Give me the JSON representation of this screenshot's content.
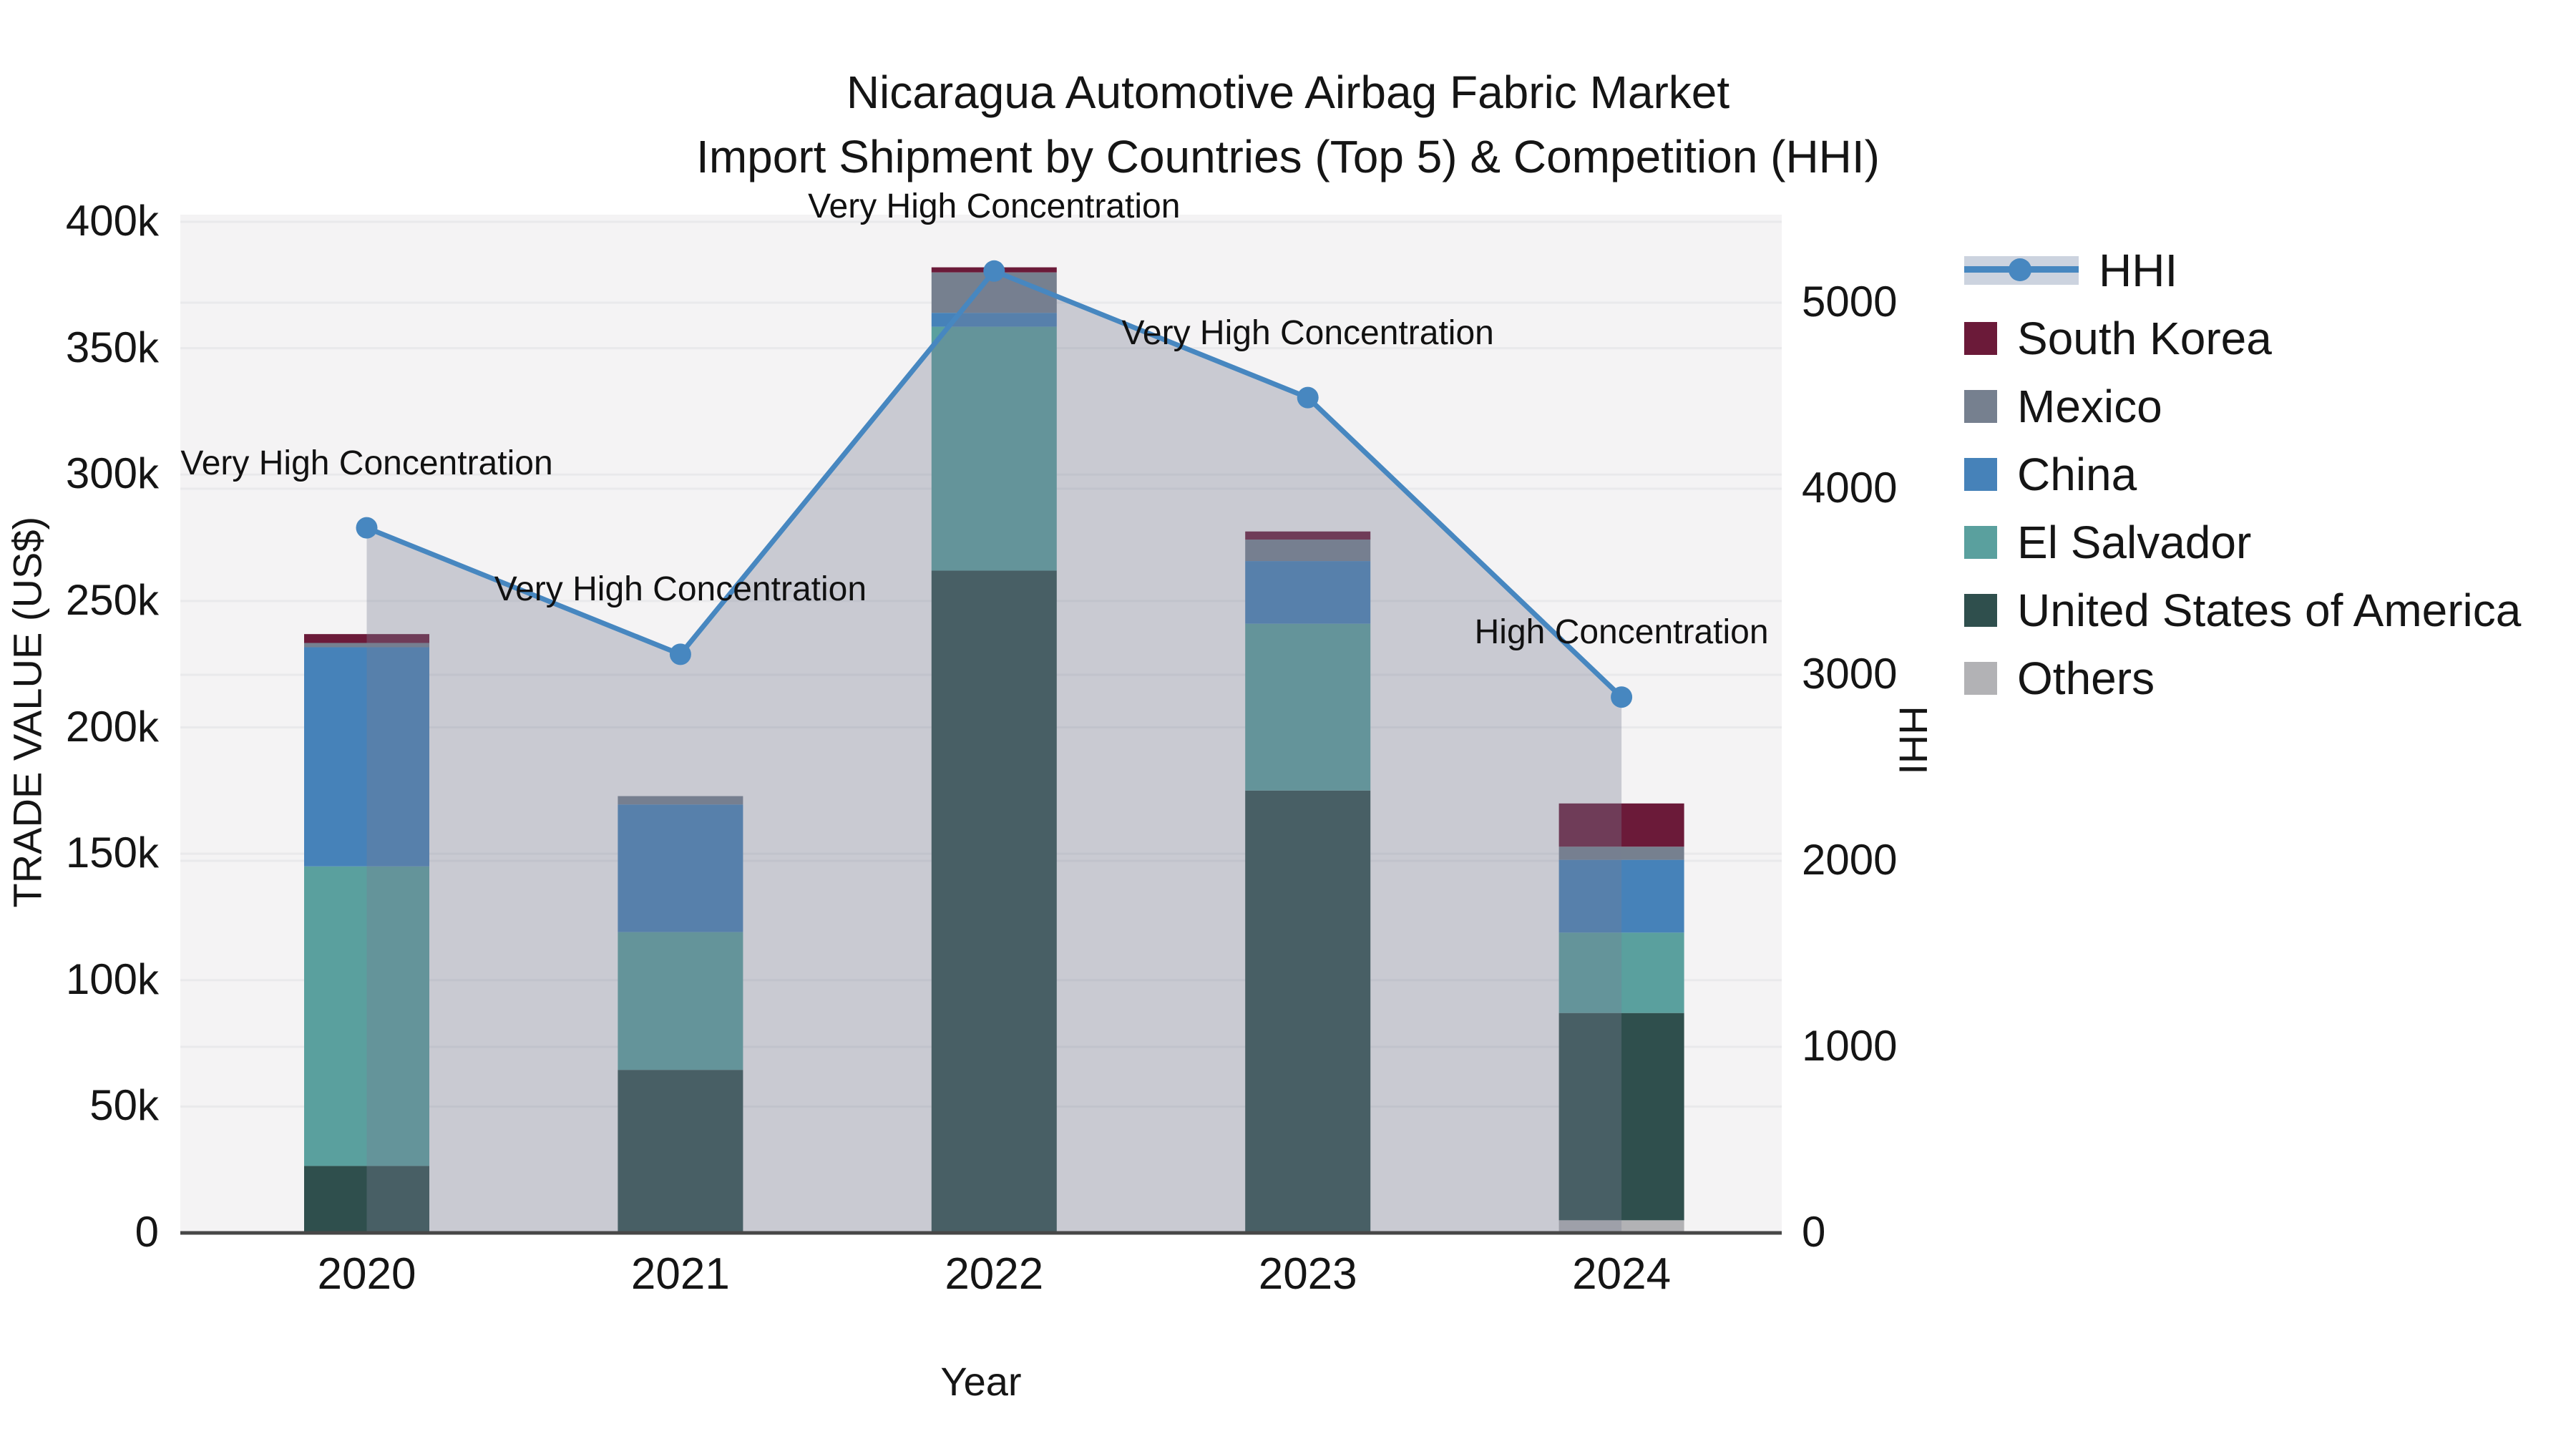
{
  "title": {
    "line1": "Nicaragua Automotive Airbag Fabric Market",
    "line2": "Import Shipment by Countries (Top 5) & Competition (HHI)"
  },
  "axes": {
    "x": {
      "label": "Year",
      "tick_labels": [
        "2020",
        "2021",
        "2022",
        "2023",
        "2024"
      ]
    },
    "y_left": {
      "label": "TRADE VALUE (US$)",
      "tick_labels": [
        "0",
        "50k",
        "100k",
        "150k",
        "200k",
        "250k",
        "300k",
        "350k",
        "400k"
      ],
      "tick_values": [
        0,
        50000,
        100000,
        150000,
        200000,
        250000,
        300000,
        350000,
        400000
      ],
      "range": [
        0,
        400000
      ]
    },
    "y_right": {
      "label": "HHI",
      "tick_labels": [
        "0",
        "1000",
        "2000",
        "3000",
        "4000",
        "5000"
      ],
      "tick_values": [
        0,
        1000,
        2000,
        3000,
        4000,
        5000
      ],
      "range": [
        0,
        5000
      ]
    }
  },
  "chart_data": {
    "type": "bar",
    "subtype": "stacked-bars-with-line-overlay-and-area",
    "categories": [
      "2020",
      "2021",
      "2022",
      "2023",
      "2024"
    ],
    "series": [
      {
        "name": "Others",
        "color": "#b2b2b5",
        "values": [
          0,
          0,
          0,
          0,
          5000
        ]
      },
      {
        "name": "United States of America",
        "color": "#2f4f4d",
        "values": [
          26500,
          64500,
          262000,
          175000,
          82000
        ]
      },
      {
        "name": "El Salvador",
        "color": "#5aa09e",
        "values": [
          118500,
          54500,
          96500,
          66000,
          31800
        ]
      },
      {
        "name": "China",
        "color": "#4682b9",
        "values": [
          86700,
          50500,
          5500,
          24800,
          28800
        ]
      },
      {
        "name": "Mexico",
        "color": "#76808f",
        "values": [
          1700,
          3300,
          16000,
          8500,
          5200
        ]
      },
      {
        "name": "South Korea",
        "color": "#6b1a39",
        "values": [
          3500,
          0,
          2000,
          3200,
          17100
        ]
      }
    ],
    "line": {
      "name": "HHI",
      "values": [
        3790,
        3110,
        5170,
        4490,
        2880
      ],
      "color": "#4787c0",
      "area_fill": "rgba(119,127,147,0.35)"
    },
    "annotations": [
      {
        "category": "2020",
        "text": "Very High Concentration"
      },
      {
        "category": "2021",
        "text": "Very High Concentration"
      },
      {
        "category": "2022",
        "text": "Very High Concentration"
      },
      {
        "category": "2023",
        "text": "Very High Concentration"
      },
      {
        "category": "2024",
        "text": "High Concentration"
      }
    ],
    "legend": [
      {
        "label": "HHI",
        "kind": "line",
        "color": "#4787c0"
      },
      {
        "label": "South Korea",
        "kind": "square",
        "color": "#6b1a39"
      },
      {
        "label": "Mexico",
        "kind": "square",
        "color": "#76808f"
      },
      {
        "label": "China",
        "kind": "square",
        "color": "#4682b9"
      },
      {
        "label": "El Salvador",
        "kind": "square",
        "color": "#5aa09e"
      },
      {
        "label": "United States of America",
        "kind": "square",
        "color": "#2f4f4d"
      },
      {
        "label": "Others",
        "kind": "square",
        "color": "#b2b2b5"
      }
    ],
    "plot_colors": {
      "background": "#f4f3f4",
      "gridline": "#e9e9eb",
      "axis_line": "#474747"
    }
  }
}
